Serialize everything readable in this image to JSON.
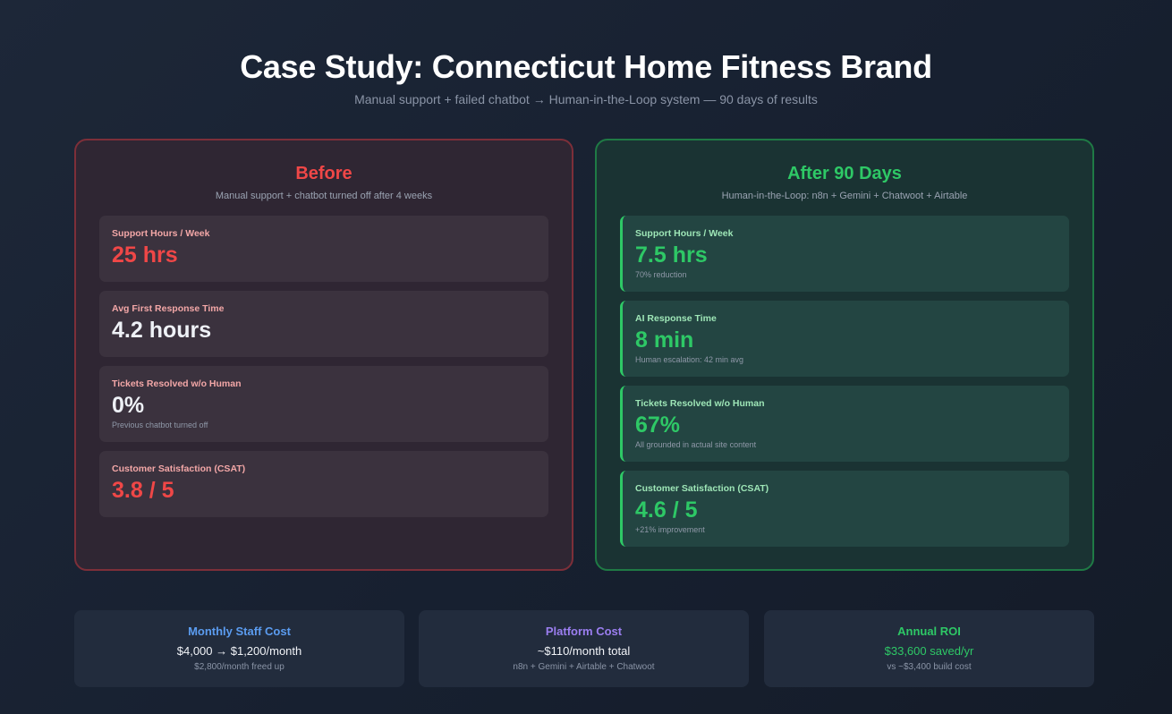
{
  "header": {
    "title": "Case Study: Connecticut Home Fitness Brand",
    "subtitle": "Manual support + failed chatbot → Human-in-the-Loop system — 90 days of results"
  },
  "before": {
    "title": "Before",
    "subtitle": "Manual support + chatbot turned off after 4 weeks",
    "metrics": [
      {
        "label": "Support Hours / Week",
        "value": "25 hrs",
        "note": ""
      },
      {
        "label": "Avg First Response Time",
        "value": "4.2 hours",
        "note": ""
      },
      {
        "label": "Tickets Resolved w/o Human",
        "value": "0%",
        "note": "Previous chatbot turned off"
      },
      {
        "label": "Customer Satisfaction (CSAT)",
        "value": "3.8 / 5",
        "note": ""
      }
    ]
  },
  "after": {
    "title": "After 90 Days",
    "subtitle": "Human-in-the-Loop: n8n + Gemini + Chatwoot + Airtable",
    "metrics": [
      {
        "label": "Support Hours / Week",
        "value": "7.5 hrs",
        "note": "70% reduction"
      },
      {
        "label": "AI Response Time",
        "value": "8 min",
        "note": "Human escalation: 42 min avg"
      },
      {
        "label": "Tickets Resolved w/o Human",
        "value": "67%",
        "note": "All grounded in actual site content"
      },
      {
        "label": "Customer Satisfaction (CSAT)",
        "value": "4.6 / 5",
        "note": "+21% improvement"
      }
    ]
  },
  "summary": [
    {
      "title": "Monthly Staff Cost",
      "value": "$4,000 → $1,200/month",
      "note": "$2,800/month freed up",
      "color": "#5b9cf0"
    },
    {
      "title": "Platform Cost",
      "value": "~$110/month total",
      "note": "n8n + Gemini + Airtable + Chatwoot",
      "color": "#9b7ef0"
    },
    {
      "title": "Annual ROI",
      "value": "$33,600 saved/yr",
      "note": "vs ~$3,400 build cost",
      "color": "#2ec866"
    }
  ],
  "colors": {
    "before_accent": "#f04747",
    "after_accent": "#2ec866",
    "background": "#1a2232"
  }
}
